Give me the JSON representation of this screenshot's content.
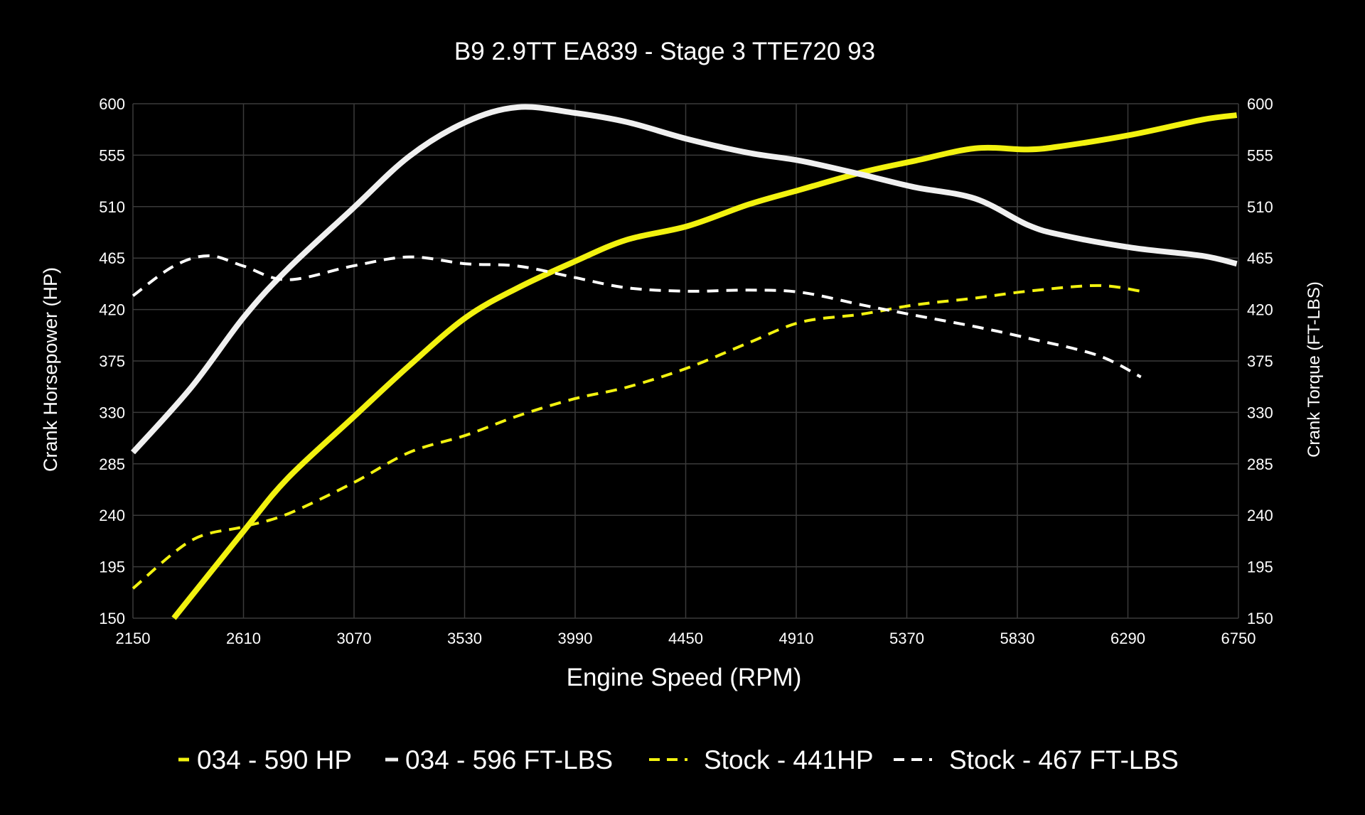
{
  "chart_data": {
    "type": "line",
    "title": "B9 2.9TT EA839 - Stage 3 TTE720 93",
    "xlabel": "Engine Speed (RPM)",
    "ylabel": "Crank Horsepower (HP)",
    "y2label": "Crank Torque (FT-LBS)",
    "xlim": [
      2150,
      6750
    ],
    "ylim": [
      150,
      600
    ],
    "y2lim": [
      150,
      600
    ],
    "xticks": [
      "2150",
      "2610",
      "3070",
      "3530",
      "3990",
      "4450",
      "4910",
      "5370",
      "5830",
      "6290",
      "6750"
    ],
    "yticks": [
      "150",
      "195",
      "240",
      "285",
      "330",
      "375",
      "420",
      "465",
      "510",
      "555",
      "600"
    ],
    "grid": true,
    "legend_position": "bottom",
    "background": "#000000",
    "series": [
      {
        "name": "034 - 590 HP",
        "color": "#f2f20f",
        "style": "solid",
        "axis": "left",
        "x": [
          2320,
          2610,
          2792,
          3063,
          3300,
          3535,
          3752,
          3988,
          4205,
          4459,
          4713,
          4930,
          5184,
          5402,
          5655,
          5873,
          6018,
          6308,
          6598,
          6743
        ],
        "y": [
          150,
          226,
          272,
          325,
          371,
          413,
          439,
          462,
          481,
          493,
          512,
          525,
          540,
          550,
          561,
          560,
          563,
          573,
          586,
          590
        ]
      },
      {
        "name": "034 - 596 FT-LBS",
        "color": "#f0f0f0",
        "style": "solid",
        "axis": "right",
        "x": [
          2150,
          2393,
          2610,
          2792,
          3063,
          3300,
          3535,
          3752,
          3988,
          4205,
          4459,
          4713,
          4930,
          5184,
          5402,
          5655,
          5873,
          6018,
          6308,
          6598,
          6743
        ],
        "y": [
          295,
          352,
          413,
          455,
          508,
          554,
          584,
          597,
          592,
          584,
          569,
          557,
          550,
          538,
          527,
          517,
          494,
          485,
          474,
          467,
          460
        ]
      },
      {
        "name": "Stock - 441HP",
        "color": "#f2f20f",
        "style": "dashed",
        "axis": "left",
        "x": [
          2150,
          2393,
          2610,
          2792,
          3063,
          3300,
          3535,
          3752,
          3988,
          4205,
          4459,
          4713,
          4930,
          5184,
          5402,
          5655,
          5873,
          6163,
          6344
        ],
        "y": [
          176,
          218,
          230,
          241,
          268,
          295,
          310,
          327,
          342,
          352,
          369,
          391,
          409,
          416,
          424,
          430,
          436,
          441,
          436
        ]
      },
      {
        "name": "Stock - 467 FT-LBS",
        "color": "#ffffff",
        "style": "dashed",
        "axis": "right",
        "x": [
          2150,
          2320,
          2465,
          2610,
          2792,
          3063,
          3300,
          3535,
          3752,
          3988,
          4205,
          4459,
          4713,
          4930,
          5184,
          5402,
          5655,
          5873,
          6163,
          6344
        ],
        "y": [
          432,
          458,
          467,
          458,
          446,
          458,
          466,
          460,
          458,
          448,
          439,
          436,
          437,
          435,
          424,
          415,
          405,
          395,
          380,
          361
        ]
      }
    ]
  }
}
